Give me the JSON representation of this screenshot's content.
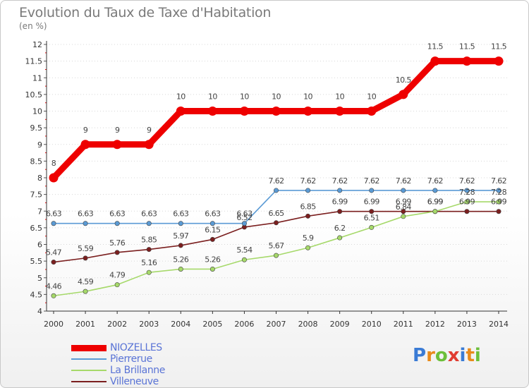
{
  "chart_data": {
    "type": "line",
    "title": "Evolution du Taux de Taxe d'Habitation",
    "unit_label": "(en %)",
    "xlabel": "",
    "ylabel": "",
    "x": [
      "2000",
      "2001",
      "2002",
      "2003",
      "2004",
      "2005",
      "2006",
      "2007",
      "2008",
      "2009",
      "2010",
      "2011",
      "2012",
      "2013",
      "2014"
    ],
    "ylim": [
      4,
      12
    ],
    "yticks": [
      "4",
      "4.5",
      "5",
      "5.5",
      "6",
      "6.5",
      "7",
      "7.5",
      "8",
      "8.5",
      "9",
      "9.5",
      "10",
      "10.5",
      "11",
      "11.5",
      "12"
    ],
    "grid": "horizontal dotted",
    "series": [
      {
        "name": "NIOZELLES",
        "color": "#ee0000",
        "values": [
          8,
          9,
          9,
          9,
          10,
          10,
          10,
          10,
          10,
          10,
          10,
          10.5,
          11.5,
          11.5,
          11.5
        ],
        "labels": [
          "8",
          "9",
          "9",
          "9",
          "10",
          "10",
          "10",
          "10",
          "10",
          "10",
          "10",
          "10.5",
          "11.5",
          "11.5",
          "11.5"
        ]
      },
      {
        "name": "Pierrerue",
        "color": "#5b9bd5",
        "values": [
          6.63,
          6.63,
          6.63,
          6.63,
          6.63,
          6.63,
          6.63,
          7.62,
          7.62,
          7.62,
          7.62,
          7.62,
          7.62,
          7.62,
          7.62
        ],
        "labels": [
          "6.63",
          "6.63",
          "6.63",
          "6.63",
          "6.63",
          "6.63",
          "6.63",
          "7.62",
          "7.62",
          "7.62",
          "7.62",
          "7.62",
          "7.62",
          "7.62",
          "7.62"
        ]
      },
      {
        "name": "La Brillanne",
        "color": "#a6d96a",
        "values": [
          4.46,
          4.59,
          4.79,
          5.16,
          5.26,
          5.26,
          5.54,
          5.67,
          5.9,
          6.2,
          6.51,
          6.84,
          6.99,
          7.28,
          7.28
        ],
        "labels": [
          "4.46",
          "4.59",
          "4.79",
          "5.16",
          "5.26",
          "5.26",
          "5.54",
          "5.67",
          "5.9",
          "6.2",
          "6.51",
          "6.84",
          "6.99",
          "7.28",
          "7.28"
        ]
      },
      {
        "name": "Villeneuve",
        "color": "#7b1f1f",
        "values": [
          5.47,
          5.59,
          5.76,
          5.85,
          5.97,
          6.15,
          6.52,
          6.65,
          6.85,
          6.99,
          6.99,
          6.99,
          6.99,
          6.99,
          6.99
        ],
        "labels": [
          "5.47",
          "5.59",
          "5.76",
          "5.85",
          "5.97",
          "6.15",
          "6.52",
          "6.65",
          "6.85",
          "6.99",
          "6.99",
          "6.99",
          "6.99",
          "6.99",
          "6.99"
        ]
      }
    ],
    "legend_position": "bottom-left"
  },
  "logo": {
    "text": "Proxiti",
    "letters": [
      {
        "ch": "P",
        "color": "#3a7bd5"
      },
      {
        "ch": "r",
        "color": "#e88a1a"
      },
      {
        "ch": "o",
        "color": "#6cbf3a"
      },
      {
        "ch": "x",
        "color": "#e03c31"
      },
      {
        "ch": "i",
        "color": "#3a7bd5"
      },
      {
        "ch": "t",
        "color": "#e88a1a"
      },
      {
        "ch": "i",
        "color": "#6cbf3a"
      }
    ]
  }
}
